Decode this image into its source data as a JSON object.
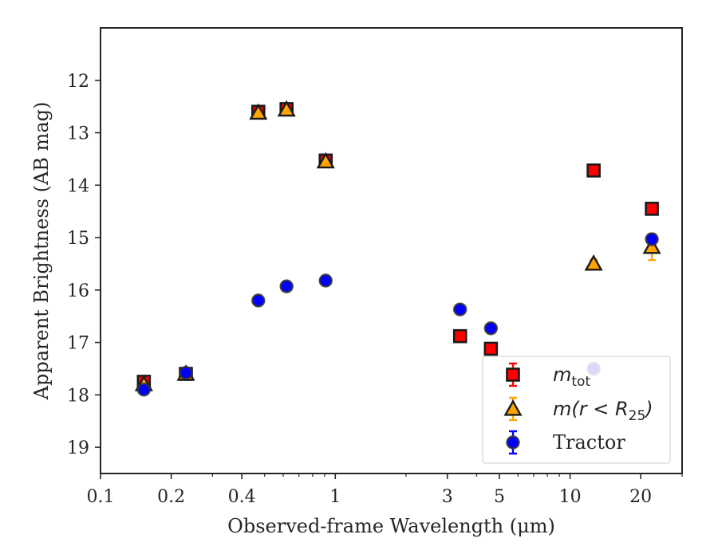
{
  "chart_data": {
    "type": "scatter",
    "title": "",
    "xlabel": "Observed-frame Wavelength (μm)",
    "ylabel": "Apparent Brightness (AB mag)",
    "x_scale": "log",
    "xlim": [
      0.1,
      30
    ],
    "ylim": [
      19.5,
      11.0
    ],
    "y_inverted": true,
    "grid": false,
    "legend_position": "lower-right",
    "x_ticks": [
      0.1,
      0.2,
      0.4,
      1,
      3,
      5,
      10,
      20
    ],
    "x_tick_labels": [
      "0.1",
      "0.2",
      "0.4",
      "1",
      "3",
      "5",
      "10",
      "20"
    ],
    "y_ticks": [
      12,
      13,
      14,
      15,
      16,
      17,
      18,
      19
    ],
    "y_tick_labels": [
      "12",
      "13",
      "14",
      "15",
      "16",
      "17",
      "18",
      "19"
    ],
    "series": [
      {
        "name": "m_tot",
        "legend_main": "m",
        "legend_sub": "tot",
        "marker": "square",
        "color": "#ff0000",
        "error_color": "#ff0000",
        "x": [
          0.153,
          0.231,
          0.47,
          0.62,
          0.91,
          3.4,
          4.6,
          12.6,
          22.3
        ],
        "y": [
          17.75,
          17.6,
          12.6,
          12.55,
          13.53,
          16.88,
          17.12,
          13.72,
          14.45
        ],
        "yerr": [
          0.06,
          0.05,
          0.02,
          0.02,
          0.02,
          0.03,
          0.03,
          0.03,
          0.06
        ]
      },
      {
        "name": "m(r < R25)",
        "legend_main": "m(r < R",
        "legend_sub": "25",
        "legend_tail": ")",
        "marker": "triangle",
        "color": "#ffa500",
        "error_color": "#ffa500",
        "x": [
          0.153,
          0.231,
          0.47,
          0.62,
          0.91,
          12.6,
          22.3
        ],
        "y": [
          17.8,
          17.6,
          12.62,
          12.56,
          13.55,
          15.5,
          15.18
        ],
        "yerr": [
          0.05,
          0.05,
          0.03,
          0.03,
          0.03,
          0.08,
          0.25
        ]
      },
      {
        "name": "Tractor",
        "marker": "circle",
        "color": "#0000ff",
        "error_color": "#0000ff",
        "x": [
          0.153,
          0.231,
          0.47,
          0.62,
          0.91,
          3.4,
          4.6,
          12.6,
          22.3
        ],
        "y": [
          17.9,
          17.58,
          16.2,
          15.93,
          15.82,
          16.37,
          16.73,
          17.5,
          15.03
        ],
        "yerr": [
          0.06,
          0.05,
          0.05,
          0.05,
          0.05,
          0.05,
          0.06,
          0.06,
          0.07
        ]
      }
    ]
  }
}
